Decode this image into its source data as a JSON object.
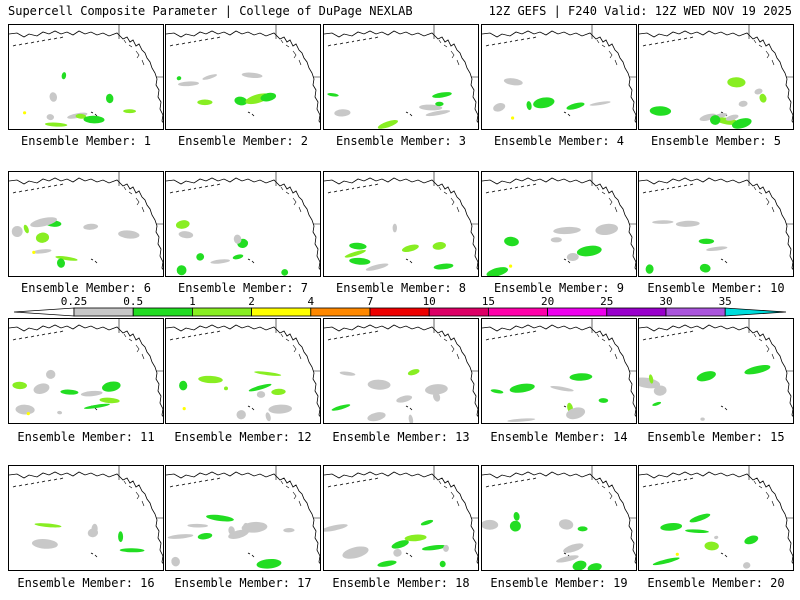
{
  "header": {
    "left": "Supercell Composite Parameter | College of DuPage NEXLAB",
    "right": "12Z GEFS | F240 Valid: 12Z WED NOV 19 2025"
  },
  "legend": {
    "ticks": [
      "0.25",
      "0.5",
      "1",
      "2",
      "4",
      "7",
      "10",
      "15",
      "20",
      "25",
      "30",
      "35"
    ],
    "colors": [
      "#c8c8c8",
      "#22dd22",
      "#88ee22",
      "#ffff00",
      "#ff8800",
      "#ee0000",
      "#dd0066",
      "#ff00aa",
      "#ee00ee",
      "#9900cc",
      "#aa55dd",
      "#00dddd"
    ]
  },
  "members": [
    {
      "label": "Ensemble Member: 1"
    },
    {
      "label": "Ensemble Member: 2"
    },
    {
      "label": "Ensemble Member: 3"
    },
    {
      "label": "Ensemble Member: 4"
    },
    {
      "label": "Ensemble Member: 5"
    },
    {
      "label": "Ensemble Member: 6"
    },
    {
      "label": "Ensemble Member: 7"
    },
    {
      "label": "Ensemble Member: 8"
    },
    {
      "label": "Ensemble Member: 9"
    },
    {
      "label": "Ensemble Member: 10"
    },
    {
      "label": "Ensemble Member: 11"
    },
    {
      "label": "Ensemble Member: 12"
    },
    {
      "label": "Ensemble Member: 13"
    },
    {
      "label": "Ensemble Member: 14"
    },
    {
      "label": "Ensemble Member: 15"
    },
    {
      "label": "Ensemble Member: 16"
    },
    {
      "label": "Ensemble Member: 17"
    },
    {
      "label": "Ensemble Member: 18"
    },
    {
      "label": "Ensemble Member: 19"
    },
    {
      "label": "Ensemble Member: 20"
    }
  ]
}
